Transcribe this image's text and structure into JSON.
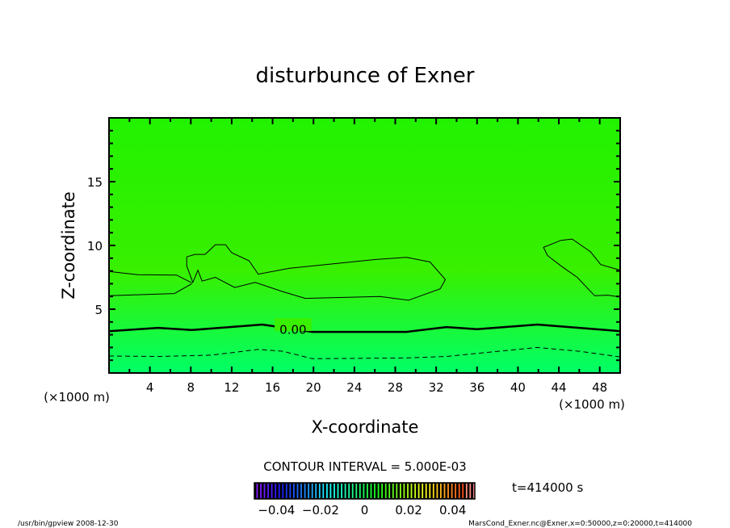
{
  "chart_data": {
    "type": "contour",
    "title": "disturbunce of Exner",
    "xlabel": "X-coordinate",
    "ylabel": "Z-coordinate",
    "x_unit": "(×1000 m)",
    "y_unit": "(×1000 m)",
    "xlim": [
      0,
      50
    ],
    "ylim": [
      0,
      20
    ],
    "x_ticks": [
      4,
      8,
      12,
      16,
      20,
      24,
      28,
      32,
      36,
      40,
      44,
      48
    ],
    "y_ticks": [
      5,
      10,
      15
    ],
    "contour_interval_text": "CONTOUR INTERVAL = 5.000E-03",
    "time_text": "t=414000 s",
    "colorbar": {
      "range": [
        -0.05,
        0.05
      ],
      "tick_labels": [
        "-0.04",
        "-0.02",
        "0",
        "0.02",
        "0.04"
      ],
      "tick_values": [
        -0.04,
        -0.02,
        0,
        0.02,
        0.04
      ]
    },
    "fill_colors": {
      "top": "#22f200",
      "middle": "#38f000",
      "bottom": "#00ff66"
    },
    "contours": [
      {
        "level": 0.0,
        "label": "0.00",
        "style": "thick",
        "points": [
          [
            0,
            3.28
          ],
          [
            4.8,
            3.54
          ],
          [
            8.1,
            3.37
          ],
          [
            15.0,
            3.8
          ],
          [
            19.9,
            3.22
          ],
          [
            29.1,
            3.22
          ],
          [
            33.0,
            3.6
          ],
          [
            36.0,
            3.43
          ],
          [
            41.9,
            3.8
          ],
          [
            50,
            3.28
          ]
        ]
      },
      {
        "level": -0.005,
        "style": "dashed",
        "points": [
          [
            0,
            1.33
          ],
          [
            5,
            1.3
          ],
          [
            10,
            1.4
          ],
          [
            14.6,
            1.85
          ],
          [
            17,
            1.7
          ],
          [
            19.9,
            1.12
          ],
          [
            29.1,
            1.18
          ],
          [
            33,
            1.3
          ],
          [
            37.3,
            1.64
          ],
          [
            41.9,
            2.0
          ],
          [
            46,
            1.7
          ],
          [
            50,
            1.26
          ]
        ]
      },
      {
        "level": 0.005,
        "style": "thin",
        "points": [
          [
            0,
            7.96
          ],
          [
            2.8,
            7.7
          ],
          [
            6.6,
            7.68
          ],
          [
            8.1,
            7.07
          ]
        ]
      },
      {
        "level": 0.005,
        "style": "thin",
        "points": [
          [
            0,
            6.06
          ],
          [
            6.4,
            6.23
          ],
          [
            8.1,
            7.0
          ]
        ]
      },
      {
        "level": 0.005,
        "style": "thin",
        "points": [
          [
            7.6,
            9.1
          ],
          [
            8.4,
            9.3
          ],
          [
            9.4,
            9.3
          ],
          [
            10.4,
            10.06
          ],
          [
            11.4,
            10.06
          ],
          [
            12.0,
            9.43
          ],
          [
            13.7,
            8.8
          ],
          [
            14.6,
            7.75
          ],
          [
            17.6,
            8.2
          ],
          [
            26.1,
            8.9
          ],
          [
            29.1,
            9.07
          ],
          [
            31.4,
            8.7
          ],
          [
            32.9,
            7.33
          ],
          [
            32.4,
            6.6
          ],
          [
            29.3,
            5.7
          ],
          [
            26.5,
            6.0
          ],
          [
            19.2,
            5.85
          ],
          [
            16.9,
            6.4
          ],
          [
            14.3,
            7.1
          ],
          [
            12.3,
            6.7
          ],
          [
            10.4,
            7.5
          ],
          [
            9.1,
            7.2
          ],
          [
            8.7,
            8.06
          ],
          [
            8.2,
            7.1
          ],
          [
            7.6,
            8.4
          ],
          [
            7.6,
            9.1
          ]
        ]
      },
      {
        "level": 0.005,
        "style": "thin",
        "points": [
          [
            50,
            8.06
          ],
          [
            48.1,
            8.5
          ],
          [
            47.1,
            9.5
          ],
          [
            45.3,
            10.5
          ],
          [
            44.2,
            10.4
          ],
          [
            42.5,
            9.85
          ],
          [
            42.9,
            9.2
          ],
          [
            44.2,
            8.4
          ],
          [
            45.8,
            7.5
          ],
          [
            47.5,
            6.06
          ],
          [
            48.8,
            6.1
          ],
          [
            50,
            5.96
          ]
        ]
      }
    ]
  },
  "footer": {
    "left": "/usr/bin/gpview  2008-12-30",
    "right": "MarsCond_Exner.nc@Exner,x=0:50000,z=0:20000,t=414000"
  }
}
